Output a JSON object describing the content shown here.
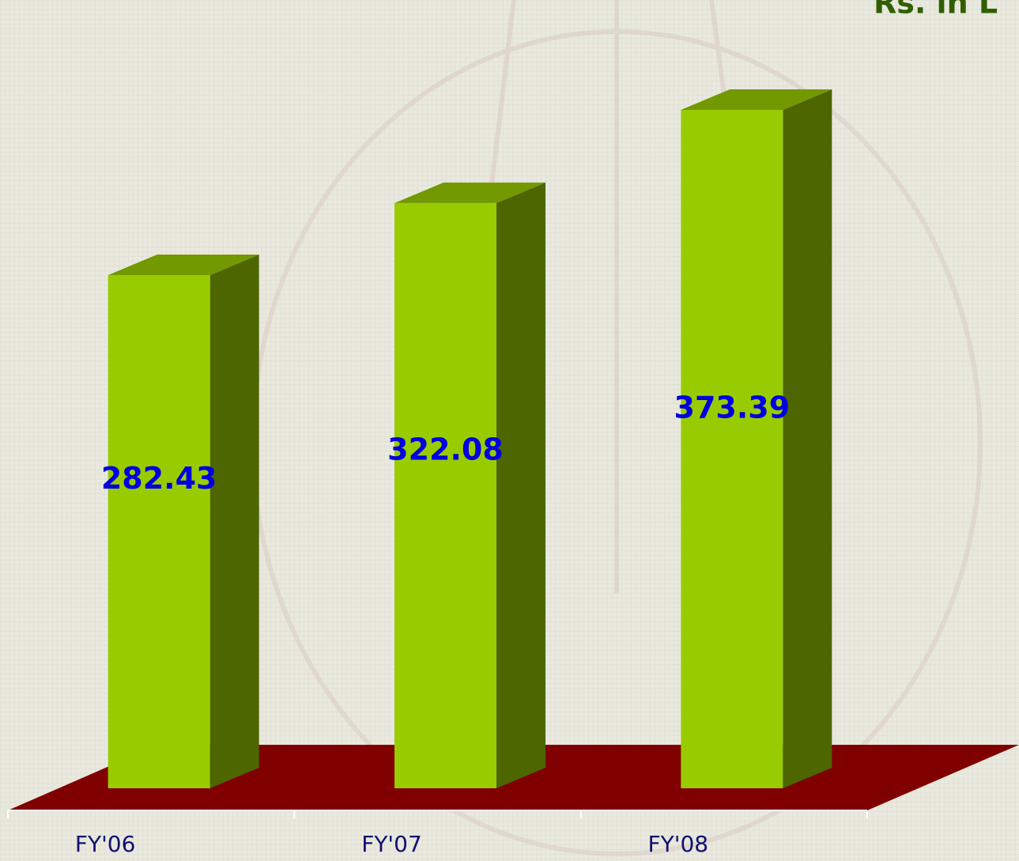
{
  "chart_data": {
    "type": "bar3d",
    "title": "Rs. in L",
    "categories": [
      "FY'06",
      "FY'07",
      "FY'08"
    ],
    "values": [
      282.43,
      322.08,
      373.39
    ],
    "color": "#99cc00",
    "side_color": "#4d6600",
    "top_color": "#739900",
    "floor_color": "#800000",
    "label_color": "#0000e0"
  }
}
